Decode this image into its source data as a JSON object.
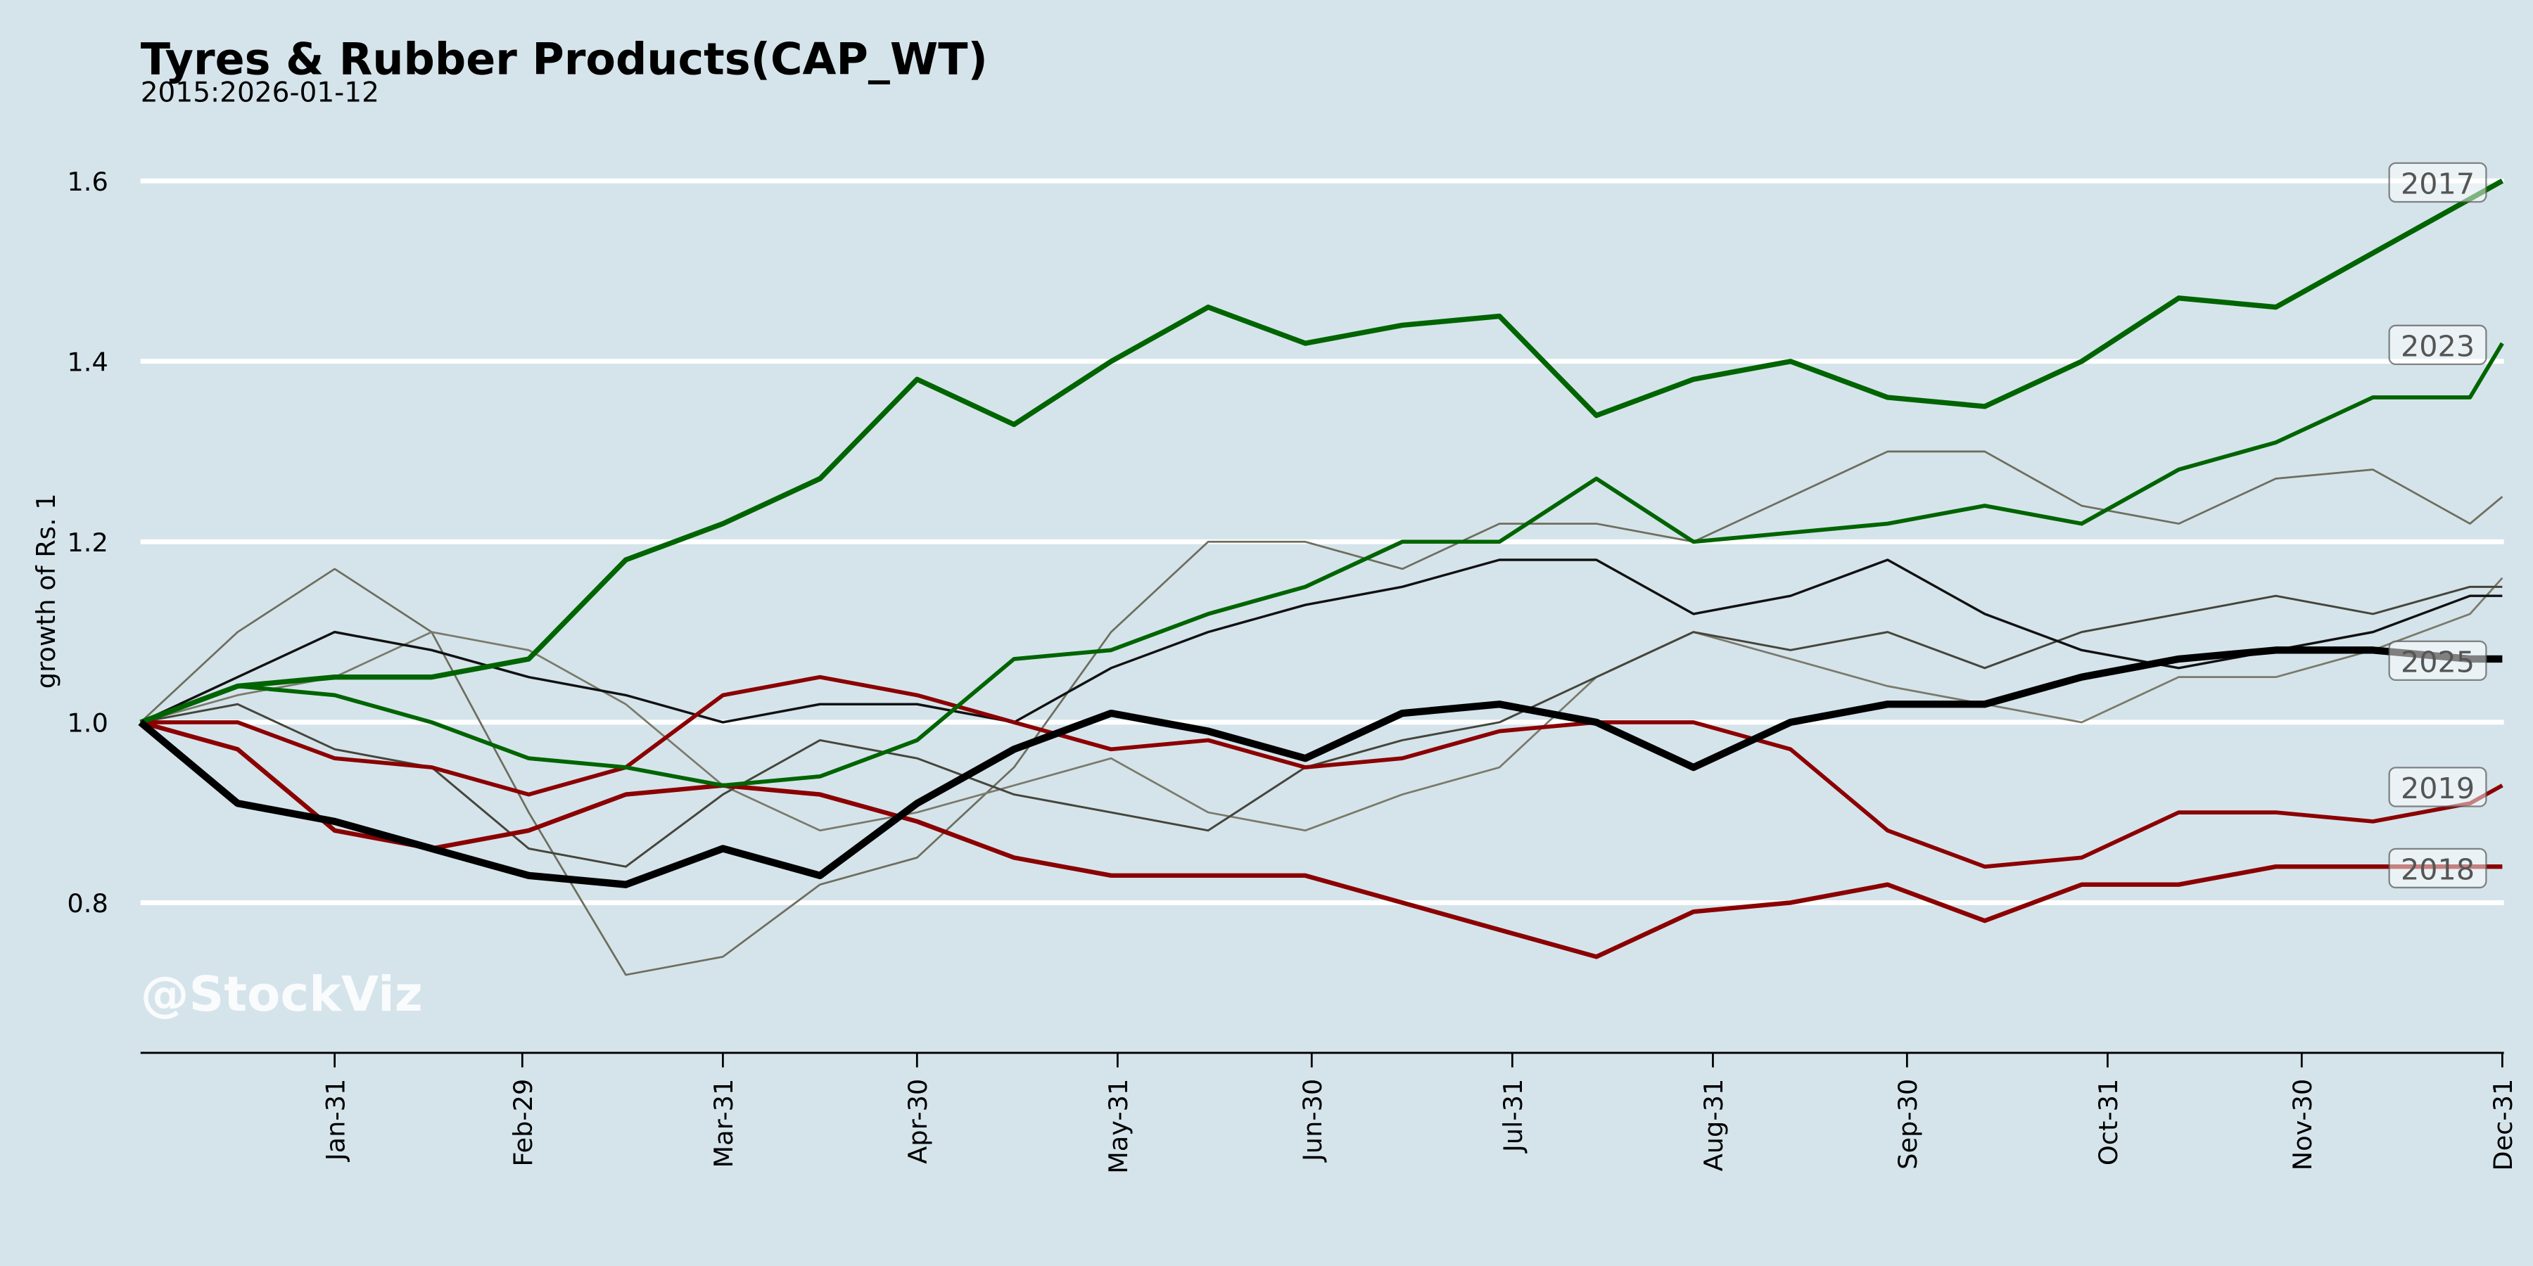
{
  "chart_data": {
    "type": "line",
    "title": "Tyres & Rubber Products(CAP_WT)",
    "subtitle": "2015:2026-01-12",
    "xlabel": "",
    "ylabel": "growth of Rs. 1",
    "ylim": [
      0.64,
      1.66
    ],
    "grid": true,
    "watermark": "@StockViz",
    "yticks": [
      0.8,
      1.0,
      1.2,
      1.4,
      1.6
    ],
    "ytick_labels": [
      "0.8",
      "1.0",
      "1.2",
      "1.4",
      "1.6"
    ],
    "xticks": [
      {
        "doy": 30,
        "label": "Jan-31"
      },
      {
        "doy": 59,
        "label": "Feb-29"
      },
      {
        "doy": 90,
        "label": "Mar-31"
      },
      {
        "doy": 120,
        "label": "Apr-30"
      },
      {
        "doy": 151,
        "label": "May-31"
      },
      {
        "doy": 181,
        "label": "Jun-30"
      },
      {
        "doy": 212,
        "label": "Jul-31"
      },
      {
        "doy": 243,
        "label": "Aug-31"
      },
      {
        "doy": 273,
        "label": "Sep-30"
      },
      {
        "doy": 304,
        "label": "Oct-31"
      },
      {
        "doy": 334,
        "label": "Nov-30"
      },
      {
        "doy": 365,
        "label": "Dec-31"
      }
    ],
    "x_doy": [
      0,
      15,
      30,
      45,
      60,
      75,
      90,
      105,
      120,
      135,
      150,
      165,
      180,
      195,
      210,
      225,
      240,
      255,
      270,
      285,
      300,
      315,
      330,
      345,
      360,
      365
    ],
    "series": [
      {
        "id": "a",
        "color": "#6e6e5e",
        "width": 1.2,
        "values": [
          1.0,
          1.1,
          1.17,
          1.1,
          0.9,
          0.72,
          0.74,
          0.82,
          0.85,
          0.95,
          1.1,
          1.2,
          1.2,
          1.17,
          1.22,
          1.22,
          1.2,
          1.25,
          1.3,
          1.3,
          1.24,
          1.22,
          1.27,
          1.28,
          1.22,
          1.25
        ]
      },
      {
        "id": "c",
        "color": "#7a7a6a",
        "width": 1.2,
        "values": [
          1.0,
          1.03,
          1.05,
          1.1,
          1.08,
          1.02,
          0.93,
          0.88,
          0.9,
          0.93,
          0.96,
          0.9,
          0.88,
          0.92,
          0.95,
          1.05,
          1.1,
          1.07,
          1.04,
          1.02,
          1.0,
          1.05,
          1.05,
          1.08,
          1.12,
          1.16
        ]
      },
      {
        "id": "d",
        "color": "#45453a",
        "width": 1.3,
        "values": [
          1.0,
          1.02,
          0.97,
          0.95,
          0.86,
          0.84,
          0.92,
          0.98,
          0.96,
          0.92,
          0.9,
          0.88,
          0.95,
          0.98,
          1.0,
          1.05,
          1.1,
          1.08,
          1.1,
          1.06,
          1.1,
          1.12,
          1.14,
          1.12,
          1.15,
          1.15
        ]
      },
      {
        "id": "b",
        "color": "#111111",
        "width": 1.5,
        "values": [
          1.0,
          1.05,
          1.1,
          1.08,
          1.05,
          1.03,
          1.0,
          1.02,
          1.02,
          1.0,
          1.06,
          1.1,
          1.13,
          1.15,
          1.18,
          1.18,
          1.12,
          1.14,
          1.18,
          1.12,
          1.08,
          1.06,
          1.08,
          1.1,
          1.14,
          1.14
        ]
      },
      {
        "name": "2018",
        "color": "#8b0000",
        "width": 2.8,
        "values": [
          1.0,
          0.97,
          0.88,
          0.86,
          0.88,
          0.92,
          0.93,
          0.92,
          0.89,
          0.85,
          0.83,
          0.83,
          0.83,
          0.8,
          0.77,
          0.74,
          0.79,
          0.8,
          0.82,
          0.78,
          0.82,
          0.82,
          0.84,
          0.84,
          0.84,
          0.84
        ]
      },
      {
        "name": "2019",
        "color": "#8b0000",
        "width": 2.5,
        "values": [
          1.0,
          1.0,
          0.96,
          0.95,
          0.92,
          0.95,
          1.03,
          1.05,
          1.03,
          1.0,
          0.97,
          0.98,
          0.95,
          0.96,
          0.99,
          1.0,
          1.0,
          0.97,
          0.88,
          0.84,
          0.85,
          0.9,
          0.9,
          0.89,
          0.91,
          0.93
        ]
      },
      {
        "name": "2023",
        "color": "#006400",
        "width": 2.5,
        "values": [
          1.0,
          1.04,
          1.03,
          1.0,
          0.96,
          0.95,
          0.93,
          0.94,
          0.98,
          1.07,
          1.08,
          1.12,
          1.15,
          1.2,
          1.2,
          1.27,
          1.2,
          1.21,
          1.22,
          1.24,
          1.22,
          1.28,
          1.31,
          1.36,
          1.36,
          1.42
        ]
      },
      {
        "name": "2017",
        "color": "#006400",
        "width": 3.2,
        "values": [
          1.0,
          1.04,
          1.05,
          1.05,
          1.07,
          1.18,
          1.22,
          1.27,
          1.38,
          1.33,
          1.4,
          1.46,
          1.42,
          1.44,
          1.45,
          1.34,
          1.38,
          1.4,
          1.36,
          1.35,
          1.4,
          1.47,
          1.46,
          1.52,
          1.58,
          1.6
        ]
      },
      {
        "name": "2025",
        "color": "#000000",
        "width": 4.5,
        "values": [
          1.0,
          0.91,
          0.89,
          0.86,
          0.83,
          0.82,
          0.86,
          0.83,
          0.91,
          0.97,
          1.01,
          0.99,
          0.96,
          1.01,
          1.02,
          1.0,
          0.95,
          1.0,
          1.02,
          1.02,
          1.05,
          1.07,
          1.08,
          1.08,
          1.07,
          1.07
        ]
      }
    ]
  }
}
